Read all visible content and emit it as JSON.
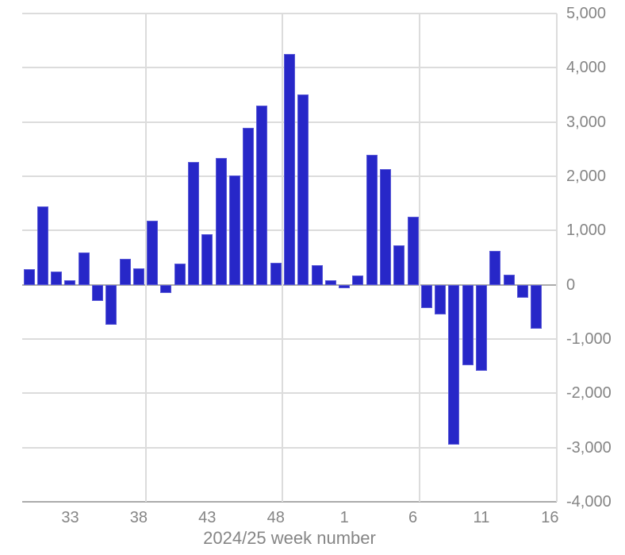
{
  "chart_data": {
    "type": "bar",
    "title": "",
    "xlabel": "2024/25 week number",
    "ylabel": "",
    "categories": [
      "30",
      "31",
      "32",
      "33",
      "34",
      "35",
      "36",
      "37",
      "38",
      "39",
      "40",
      "41",
      "42",
      "43",
      "44",
      "45",
      "46",
      "47",
      "48",
      "49",
      "50",
      "51",
      "52",
      "1",
      "2",
      "3",
      "4",
      "5",
      "6",
      "7",
      "8",
      "9",
      "10",
      "11",
      "12",
      "13",
      "14",
      "15",
      "16"
    ],
    "values": [
      290,
      1450,
      240,
      90,
      590,
      -300,
      -740,
      480,
      300,
      1180,
      -150,
      390,
      2270,
      930,
      2330,
      2010,
      2890,
      3300,
      410,
      4260,
      3510,
      360,
      90,
      -70,
      175,
      2400,
      2130,
      730,
      1250,
      -430,
      -550,
      -2950,
      -1480,
      -1590,
      630,
      190,
      -240,
      -810,
      0
    ],
    "x_tick_labels": [
      "33",
      "38",
      "43",
      "48",
      "1",
      "6",
      "11",
      "16"
    ],
    "x_tick_indices": [
      3,
      8,
      13,
      18,
      23,
      28,
      33,
      38
    ],
    "y_tick_values": [
      5000,
      4000,
      3000,
      2000,
      1000,
      0,
      -1000,
      -2000,
      -3000,
      -4000
    ],
    "y_tick_labels": [
      "5,000",
      "4,000",
      "3,000",
      "2,000",
      "1,000",
      "0",
      "-1,000",
      "-2,000",
      "-3,000",
      "-4,000"
    ],
    "ylim": [
      -4000,
      5000
    ],
    "grid": "on",
    "legend": "none",
    "vgrid_after_category_index": [
      8,
      18,
      28,
      38
    ],
    "bar_color": "#2727c8",
    "gridline_color": "#dcdcdc",
    "axis_line_color": "#ababab",
    "label_color": "#858585"
  }
}
